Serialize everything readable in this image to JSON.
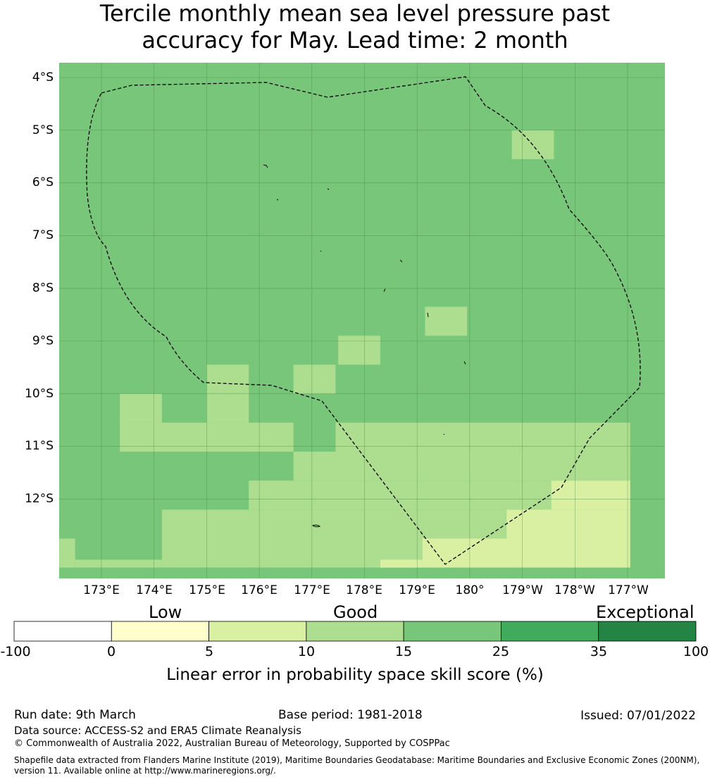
{
  "title": {
    "line1": "Tercile monthly mean sea level pressure past",
    "line2": "accuracy for May. Lead time: 2 month"
  },
  "map": {
    "lat_labels": [
      "4°S",
      "5°S",
      "6°S",
      "7°S",
      "8°S",
      "9°S",
      "10°S",
      "11°S",
      "12°S"
    ],
    "lon_labels": [
      "173°E",
      "174°E",
      "175°E",
      "176°E",
      "177°E",
      "178°E",
      "179°E",
      "180°",
      "179°W",
      "178°W",
      "177°W"
    ],
    "colors": {
      "cat_5_10": "#d9f0a3",
      "cat_10_15": "#addd8e",
      "cat_15_25": "#78c679",
      "gridline": "#3f7f3f",
      "boundary": "#000000"
    },
    "background_category": "15-25",
    "cells": [
      {
        "lon": [
          180.8,
          181.6
        ],
        "lat": [
          -5.0,
          -5.55
        ],
        "category": "10-15"
      },
      {
        "lon": [
          179.15,
          179.95
        ],
        "lat": [
          -8.35,
          -8.9
        ],
        "category": "10-15"
      },
      {
        "lon": [
          177.5,
          178.3
        ],
        "lat": [
          -8.9,
          -9.45
        ],
        "category": "10-15"
      },
      {
        "lon": [
          175.0,
          175.8
        ],
        "lat": [
          -9.45,
          -10.0
        ],
        "category": "10-15"
      },
      {
        "lon": [
          176.65,
          177.45
        ],
        "lat": [
          -9.45,
          -10.0
        ],
        "category": "10-15"
      },
      {
        "lon": [
          173.35,
          174.15
        ],
        "lat": [
          -10.0,
          -10.55
        ],
        "category": "10-15"
      },
      {
        "lon": [
          175.0,
          175.8
        ],
        "lat": [
          -10.0,
          -10.55
        ],
        "category": "10-15"
      },
      {
        "lon": [
          173.35,
          176.65
        ],
        "lat": [
          -10.55,
          -11.1
        ],
        "category": "10-15"
      },
      {
        "lon": [
          177.45,
          183.05
        ],
        "lat": [
          -10.55,
          -11.1
        ],
        "category": "10-15"
      },
      {
        "lon": [
          176.65,
          183.05
        ],
        "lat": [
          -11.1,
          -11.65
        ],
        "category": "10-15"
      },
      {
        "lon": [
          175.8,
          181.55
        ],
        "lat": [
          -11.65,
          -12.2
        ],
        "category": "10-15"
      },
      {
        "lon": [
          174.15,
          180.7
        ],
        "lat": [
          -12.2,
          -12.75
        ],
        "category": "10-15"
      },
      {
        "lon": [
          174.15,
          179.1
        ],
        "lat": [
          -12.75,
          -13.3
        ],
        "category": "10-15"
      },
      {
        "lon": [
          172.2,
          172.5
        ],
        "lat": [
          -12.75,
          -13.3
        ],
        "category": "10-15"
      },
      {
        "lon": [
          172.5,
          174.15
        ],
        "lat": [
          -13.15,
          -13.3
        ],
        "category": "10-15"
      },
      {
        "lon": [
          181.55,
          183.05
        ],
        "lat": [
          -11.65,
          -12.2
        ],
        "category": "5-10"
      },
      {
        "lon": [
          180.7,
          183.05
        ],
        "lat": [
          -12.2,
          -12.75
        ],
        "category": "5-10"
      },
      {
        "lon": [
          179.1,
          183.05
        ],
        "lat": [
          -12.75,
          -13.3
        ],
        "category": "5-10"
      },
      {
        "lon": [
          178.3,
          179.1
        ],
        "lat": [
          -13.15,
          -13.3
        ],
        "category": "5-10"
      }
    ]
  },
  "colorbar": {
    "category_labels": [
      "Low",
      "Good",
      "Exceptional"
    ],
    "bins": [
      {
        "range": "-100 to 0",
        "color": "#ffffff"
      },
      {
        "range": "0 to 5",
        "color": "#ffffcc"
      },
      {
        "range": "5 to 10",
        "color": "#d9f0a3"
      },
      {
        "range": "10 to 15",
        "color": "#addd8e"
      },
      {
        "range": "15 to 25",
        "color": "#78c679"
      },
      {
        "range": "25 to 35",
        "color": "#41ab5d"
      },
      {
        "range": "35 to 100",
        "color": "#238443"
      }
    ],
    "ticks": [
      "-100",
      "0",
      "5",
      "10",
      "15",
      "25",
      "35",
      "100"
    ],
    "label": "Linear error in probability space skill score (%)"
  },
  "footer": {
    "run_date": "Run date: 9th March",
    "base_period": "Base period: 1981-2018",
    "issued": "Issued: 07/01/2022",
    "data_source": "Data source: ACCESS-S2 and ERA5 Climate Reanalysis",
    "copyright": "© Commonwealth of Australia 2022, Australian Bureau of Meteorology, Supported by COSPPac",
    "shapefile_line1": "Shapefile data extracted from Flanders Marine Institute (2019), Maritime Boundaries Geodatabase: Maritime Boundaries and Exclusive Economic Zones (200NM),",
    "shapefile_line2": "version 11. Available online at http://www.marineregions.org/."
  }
}
